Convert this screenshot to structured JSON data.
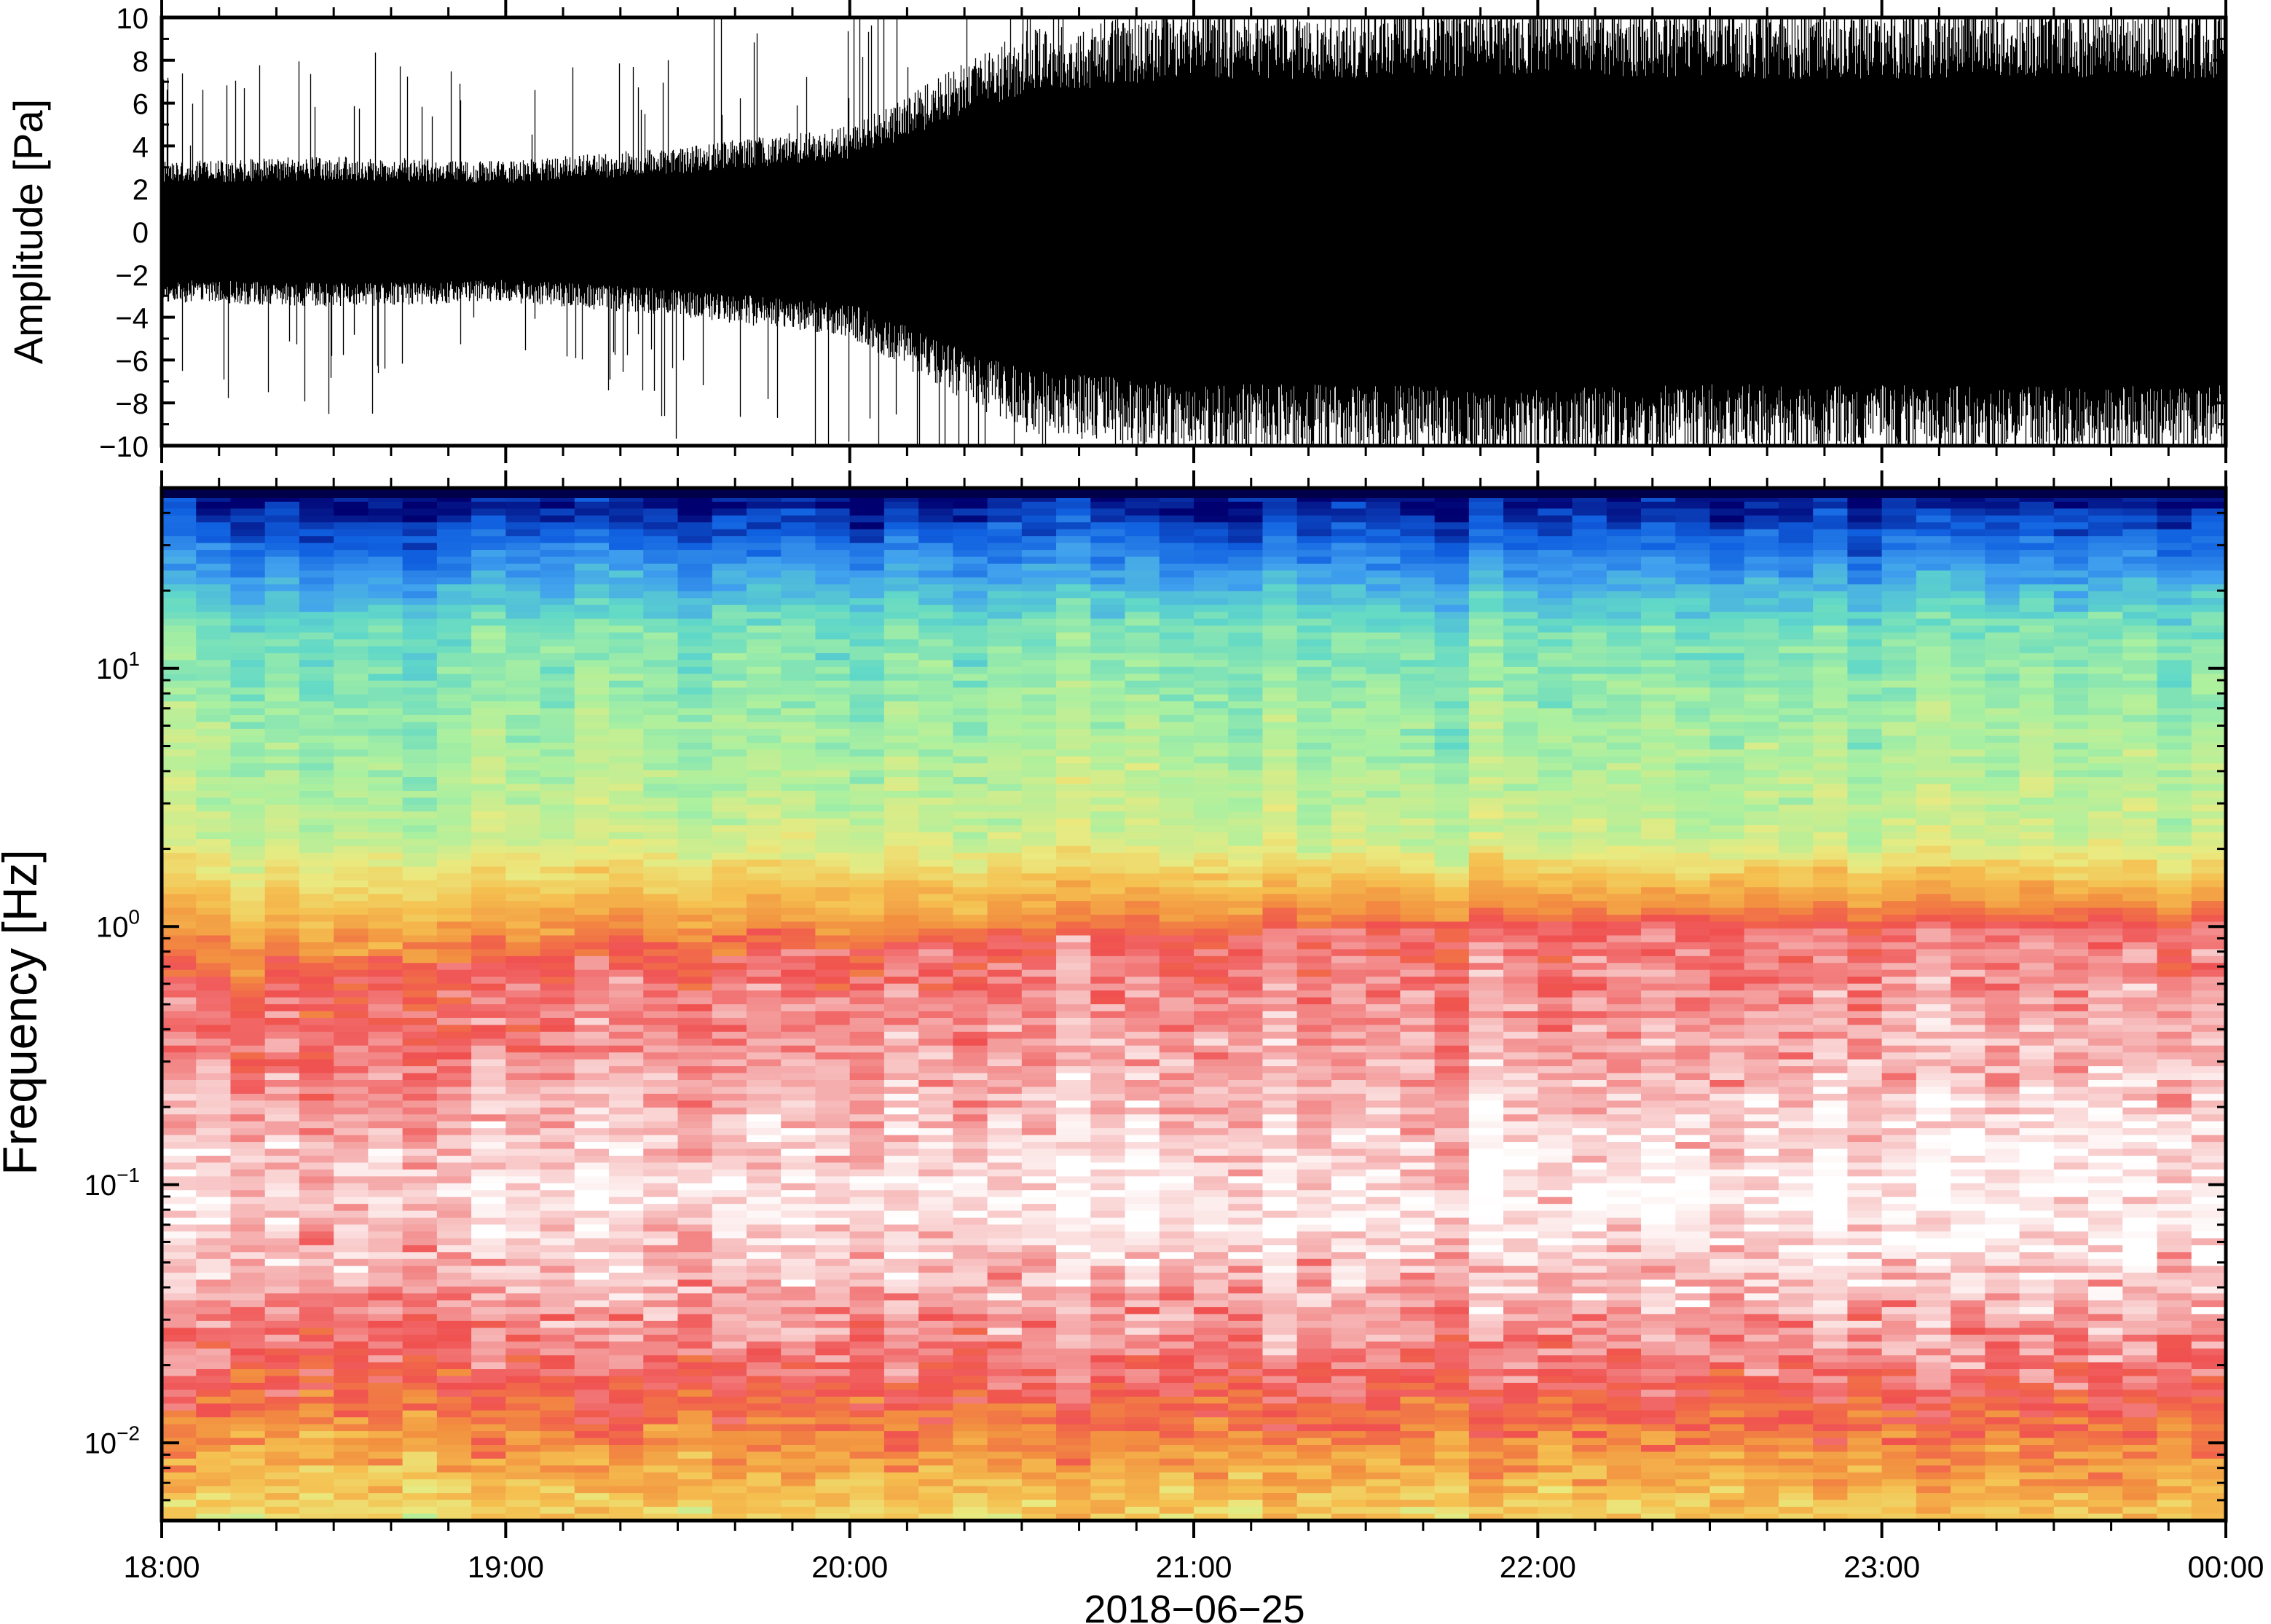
{
  "chart_data": [
    {
      "type": "line",
      "panel": "waveform",
      "ylabel": "Amplitude [Pa]",
      "ylim": [
        -10,
        10
      ],
      "y_ticks": [
        "10",
        "8",
        "6",
        "4",
        "2",
        "0",
        "−2",
        "−4",
        "−6",
        "−8",
        "−10"
      ],
      "y_tick_values": [
        10,
        8,
        6,
        4,
        2,
        0,
        -2,
        -4,
        -6,
        -8,
        -10
      ],
      "series_color": "#000000",
      "envelope": {
        "hours": [
          18.0,
          18.5,
          19.0,
          19.5,
          20.0,
          20.25,
          20.5,
          21.0,
          21.5,
          22.0,
          22.5,
          23.0,
          23.5,
          24.0
        ],
        "amplitude": [
          3.0,
          3.2,
          3.0,
          3.6,
          4.5,
          6.5,
          8.5,
          9.5,
          9.5,
          9.8,
          9.5,
          9.5,
          9.6,
          9.5
        ]
      },
      "grid": false
    },
    {
      "type": "heatmap",
      "panel": "spectrogram",
      "ylabel": "Frequency [Hz]",
      "xlabel": "2018−06−25",
      "y_scale": "log",
      "ylim": [
        0.005,
        50
      ],
      "y_ticks": [
        {
          "base": "10",
          "exp": "1",
          "value": 10
        },
        {
          "base": "10",
          "exp": "0",
          "value": 1
        },
        {
          "base": "10",
          "exp": "−1",
          "value": 0.1
        },
        {
          "base": "10",
          "exp": "−2",
          "value": 0.01
        }
      ],
      "x_ticks": [
        "18:00",
        "19:00",
        "20:00",
        "21:00",
        "22:00",
        "23:00",
        "00:00"
      ],
      "x_tick_hours": [
        18,
        19,
        20,
        21,
        22,
        23,
        24
      ],
      "xlim_hours": [
        18,
        24
      ],
      "colormap": [
        "#ffffff",
        "#f5aaaa",
        "#f05050",
        "#f29040",
        "#f5c050",
        "#eaea80",
        "#aaf0a0",
        "#60d8c8",
        "#40a0ee",
        "#1060e0",
        "#000070"
      ],
      "grid": false
    }
  ]
}
